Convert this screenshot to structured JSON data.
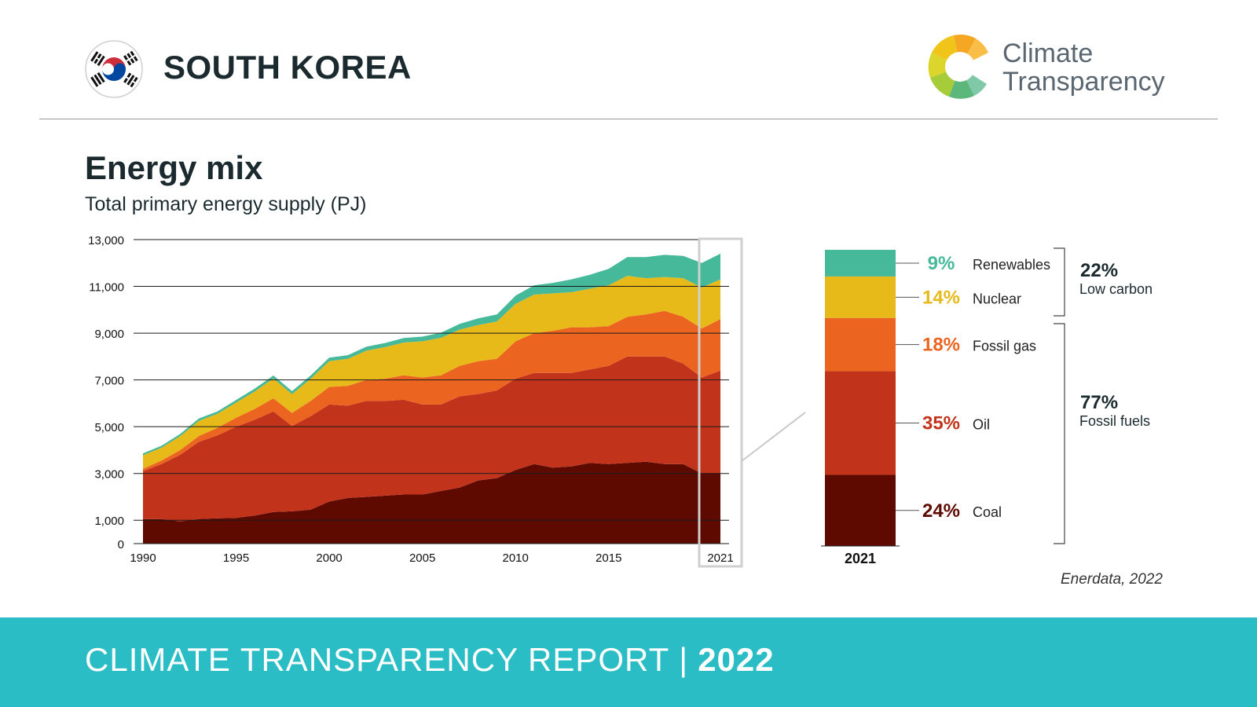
{
  "header": {
    "country": "SOUTH KOREA",
    "logo_text_line1": "Climate",
    "logo_text_line2": "Transparency"
  },
  "section": {
    "title": "Energy mix",
    "subtitle": "Total primary energy supply (PJ)"
  },
  "source": "Enerdata, 2022",
  "footer": {
    "report": "CLIMATE TRANSPARENCY REPORT",
    "separator": "|",
    "year": "2022"
  },
  "colors": {
    "coal": "#5e0a00",
    "oil": "#c1341b",
    "fossil_gas": "#eb6521",
    "nuclear": "#e7b919",
    "renewables": "#46b99a",
    "footer": "#2bbdc5"
  },
  "chart_data": [
    {
      "type": "area",
      "stacked": true,
      "ylim": [
        0,
        13000
      ],
      "y_ticks": [
        "0",
        "1,000",
        "3,000",
        "5,000",
        "7,000",
        "9,000",
        "11,000",
        "13,000"
      ],
      "y_tick_values": [
        0,
        1000,
        3000,
        5000,
        7000,
        9000,
        11000,
        13000
      ],
      "x_tick_labels": [
        "1990",
        "1995",
        "2000",
        "2005",
        "2010",
        "2015",
        "2021"
      ],
      "x_tick_values": [
        1990,
        1995,
        2000,
        2005,
        2010,
        2015,
        2021
      ],
      "grid": true,
      "highlight_year": 2021,
      "x": [
        1990,
        1991,
        1992,
        1993,
        1994,
        1995,
        1996,
        1997,
        1998,
        1999,
        2000,
        2001,
        2002,
        2003,
        2004,
        2005,
        2006,
        2007,
        2008,
        2009,
        2010,
        2011,
        2012,
        2013,
        2014,
        2015,
        2016,
        2017,
        2018,
        2019,
        2020,
        2021
      ],
      "series": [
        {
          "key": "coal",
          "values": [
            1050,
            1050,
            950,
            1050,
            1080,
            1100,
            1200,
            1350,
            1380,
            1450,
            1800,
            1950,
            2000,
            2050,
            2100,
            2100,
            2250,
            2400,
            2700,
            2800,
            3150,
            3400,
            3250,
            3300,
            3450,
            3400,
            3450,
            3500,
            3400,
            3400,
            3000,
            3000
          ]
        },
        {
          "key": "oil",
          "values": [
            2050,
            2350,
            2850,
            3300,
            3550,
            3900,
            4100,
            4300,
            3650,
            4000,
            4150,
            3950,
            4100,
            4050,
            4050,
            3850,
            3700,
            3900,
            3700,
            3750,
            3900,
            3900,
            4050,
            4000,
            4000,
            4200,
            4550,
            4500,
            4600,
            4300,
            4100,
            4400
          ]
        },
        {
          "key": "fossil_gas",
          "values": [
            100,
            150,
            200,
            250,
            320,
            380,
            460,
            560,
            560,
            650,
            750,
            850,
            900,
            950,
            1050,
            1150,
            1250,
            1300,
            1400,
            1350,
            1600,
            1700,
            1800,
            1950,
            1800,
            1700,
            1700,
            1800,
            1950,
            2000,
            2100,
            2200
          ]
        },
        {
          "key": "nuclear",
          "values": [
            580,
            550,
            600,
            650,
            600,
            650,
            750,
            850,
            800,
            950,
            1100,
            1150,
            1250,
            1350,
            1400,
            1550,
            1600,
            1550,
            1550,
            1600,
            1600,
            1650,
            1600,
            1500,
            1650,
            1750,
            1750,
            1550,
            1450,
            1650,
            1750,
            1700
          ]
        },
        {
          "key": "renewables",
          "values": [
            80,
            85,
            90,
            100,
            100,
            110,
            120,
            130,
            130,
            140,
            150,
            160,
            170,
            180,
            190,
            200,
            220,
            250,
            280,
            300,
            350,
            400,
            450,
            550,
            600,
            700,
            800,
            900,
            950,
            950,
            1050,
            1100
          ]
        }
      ]
    },
    {
      "type": "bar",
      "stacked": true,
      "categories": [
        "2021"
      ],
      "series": [
        {
          "name": "Coal",
          "key": "coal",
          "value": 24,
          "label": "24%"
        },
        {
          "name": "Oil",
          "key": "oil",
          "value": 35,
          "label": "35%"
        },
        {
          "name": "Fossil gas",
          "key": "fossil_gas",
          "value": 18,
          "label": "18%"
        },
        {
          "name": "Nuclear",
          "key": "nuclear",
          "value": 14,
          "label": "14%"
        },
        {
          "name": "Renewables",
          "key": "renewables",
          "value": 9,
          "label": "9%"
        }
      ],
      "groups": [
        {
          "pct": "22%",
          "label": "Low carbon"
        },
        {
          "pct": "77%",
          "label": "Fossil fuels"
        }
      ]
    }
  ]
}
